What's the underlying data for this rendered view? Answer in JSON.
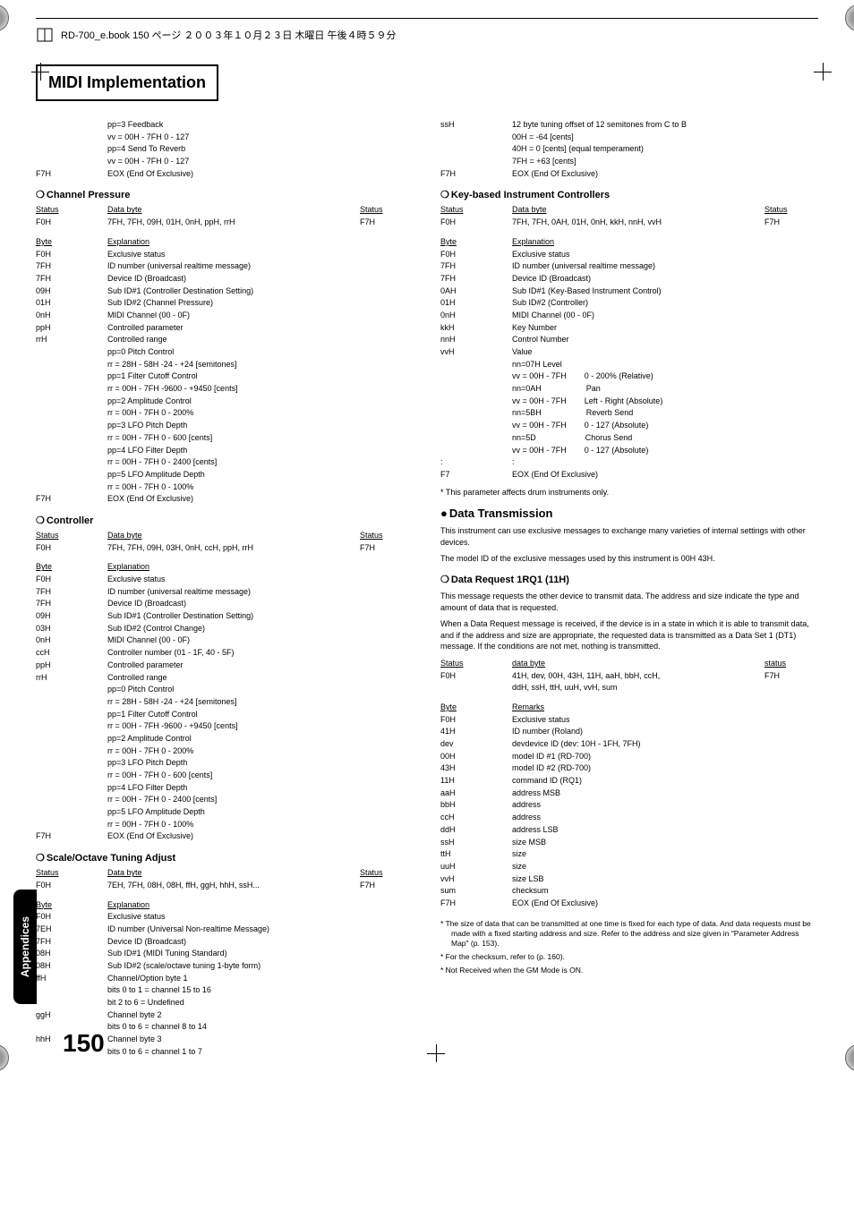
{
  "header": {
    "text": "RD-700_e.book 150 ページ ２００３年１０月２３日 木曜日 午後４時５９分"
  },
  "title": "MIDI Implementation",
  "sideTab": "Appendices",
  "pageNumber": "150",
  "leftCol": {
    "intro": [
      {
        "l": "",
        "m": "pp=3 Feedback"
      },
      {
        "l": "",
        "m": "vv = 00H - 7FH 0 - 127"
      },
      {
        "l": "",
        "m": "pp=4 Send To Reverb"
      },
      {
        "l": "",
        "m": "vv = 00H - 7FH 0 - 127"
      },
      {
        "l": "F7H",
        "m": "EOX (End Of Exclusive)"
      }
    ],
    "channelPressure": {
      "title": "Channel Pressure",
      "header": {
        "l": "Status",
        "m": "Data byte",
        "r": "Status"
      },
      "statusRow": {
        "l": "F0H",
        "m": "7FH, 7FH, 09H, 01H, 0nH, ppH, rrH",
        "r": "F7H"
      },
      "byteHeader": {
        "l": "Byte",
        "m": "Explanation"
      },
      "rows": [
        {
          "l": "F0H",
          "m": "Exclusive status"
        },
        {
          "l": "7FH",
          "m": "ID number (universal realtime message)"
        },
        {
          "l": "7FH",
          "m": "Device ID (Broadcast)"
        },
        {
          "l": "09H",
          "m": "Sub ID#1 (Controller Destination Setting)"
        },
        {
          "l": "01H",
          "m": "Sub ID#2 (Channel Pressure)"
        },
        {
          "l": "0nH",
          "m": "MIDI Channel (00 - 0F)"
        },
        {
          "l": "ppH",
          "m": "Controlled parameter"
        },
        {
          "l": "rrH",
          "m": "Controlled range"
        },
        {
          "l": "",
          "m": "pp=0 Pitch Control"
        },
        {
          "l": "",
          "m": "rr = 28H - 58H -24 - +24 [semitones]"
        },
        {
          "l": "",
          "m": "pp=1 Filter Cutoff Control"
        },
        {
          "l": "",
          "m": "rr = 00H - 7FH -9600 - +9450 [cents]"
        },
        {
          "l": "",
          "m": "pp=2 Amplitude Control"
        },
        {
          "l": "",
          "m": "rr = 00H - 7FH 0 - 200%"
        },
        {
          "l": "",
          "m": "pp=3 LFO Pitch Depth"
        },
        {
          "l": "",
          "m": "rr = 00H - 7FH 0 - 600 [cents]"
        },
        {
          "l": "",
          "m": "pp=4 LFO Filter Depth"
        },
        {
          "l": "",
          "m": "rr = 00H - 7FH 0 - 2400 [cents]"
        },
        {
          "l": "",
          "m": "pp=5 LFO Amplitude Depth"
        },
        {
          "l": "",
          "m": "rr = 00H - 7FH 0 - 100%"
        },
        {
          "l": "F7H",
          "m": "EOX (End Of Exclusive)"
        }
      ]
    },
    "controller": {
      "title": "Controller",
      "header": {
        "l": "Status",
        "m": "Data byte",
        "r": "Status"
      },
      "statusRow": {
        "l": "F0H",
        "m": "7FH, 7FH, 09H, 03H, 0nH, ccH, ppH, rrH",
        "r": "F7H"
      },
      "byteHeader": {
        "l": "Byte",
        "m": "Explanation"
      },
      "rows": [
        {
          "l": "F0H",
          "m": "Exclusive status"
        },
        {
          "l": "7FH",
          "m": "ID number (universal realtime message)"
        },
        {
          "l": "7FH",
          "m": "Device ID (Broadcast)"
        },
        {
          "l": "09H",
          "m": "Sub ID#1 (Controller Destination Setting)"
        },
        {
          "l": "03H",
          "m": "Sub ID#2 (Control Change)"
        },
        {
          "l": "0nH",
          "m": "MIDI Channel (00 - 0F)"
        },
        {
          "l": "ccH",
          "m": "Controller number (01 - 1F, 40 - 5F)"
        },
        {
          "l": "ppH",
          "m": "Controlled parameter"
        },
        {
          "l": "rrH",
          "m": "Controlled range"
        },
        {
          "l": "",
          "m": "pp=0 Pitch Control"
        },
        {
          "l": "",
          "m": "rr = 28H - 58H -24 - +24 [semitones]"
        },
        {
          "l": "",
          "m": "pp=1 Filter Cutoff Control"
        },
        {
          "l": "",
          "m": "rr = 00H - 7FH -9600 - +9450 [cents]"
        },
        {
          "l": "",
          "m": "pp=2 Amplitude Control"
        },
        {
          "l": "",
          "m": "rr = 00H - 7FH 0 - 200%"
        },
        {
          "l": "",
          "m": "pp=3 LFO Pitch Depth"
        },
        {
          "l": "",
          "m": "rr = 00H - 7FH 0 - 600 [cents]"
        },
        {
          "l": "",
          "m": "pp=4 LFO Filter Depth"
        },
        {
          "l": "",
          "m": "rr = 00H - 7FH 0 - 2400 [cents]"
        },
        {
          "l": "",
          "m": "pp=5 LFO Amplitude Depth"
        },
        {
          "l": "",
          "m": "rr = 00H - 7FH 0 - 100%"
        },
        {
          "l": "F7H",
          "m": "EOX (End Of Exclusive)"
        }
      ]
    },
    "scaleOctave": {
      "title": "Scale/Octave Tuning Adjust",
      "header": {
        "l": "Status",
        "m": "Data byte",
        "r": "Status"
      },
      "statusRow": {
        "l": "F0H",
        "m": "7EH, 7FH, 08H, 08H, ffH, ggH, hhH, ssH...",
        "r": "F7H"
      },
      "byteHeader": {
        "l": "Byte",
        "m": "Explanation"
      },
      "rows": [
        {
          "l": "F0H",
          "m": "Exclusive status"
        },
        {
          "l": "7EH",
          "m": "ID number (Universal Non-realtime Message)"
        },
        {
          "l": "7FH",
          "m": "Device ID (Broadcast)"
        },
        {
          "l": "08H",
          "m": "Sub ID#1 (MIDI Tuning Standard)"
        },
        {
          "l": "08H",
          "m": "Sub ID#2 (scale/octave tuning 1-byte form)"
        },
        {
          "l": "ffH",
          "m": "Channel/Option byte 1"
        },
        {
          "l": "",
          "m": "bits 0 to 1 = channel 15 to 16"
        },
        {
          "l": "",
          "m": "bit 2 to 6 = Undefined"
        },
        {
          "l": "ggH",
          "m": "Channel byte 2"
        },
        {
          "l": "",
          "m": "bits 0 to 6 = channel 8 to 14"
        },
        {
          "l": "hhH",
          "m": "Channel byte 3"
        },
        {
          "l": "",
          "m": "bits 0 to 6 = channel 1 to 7"
        }
      ]
    }
  },
  "rightCol": {
    "intro": [
      {
        "l": "ssH",
        "m": "12 byte tuning offset of 12 semitones from C to B"
      },
      {
        "l": "",
        "m": "00H = -64 [cents]"
      },
      {
        "l": "",
        "m": "40H = 0 [cents] (equal temperament)"
      },
      {
        "l": "",
        "m": "7FH = +63 [cents]"
      },
      {
        "l": "F7H",
        "m": "EOX (End Of Exclusive)"
      }
    ],
    "keyBased": {
      "title": "Key-based Instrument Controllers",
      "header": {
        "l": "Status",
        "m": "Data byte",
        "r": "Status"
      },
      "statusRow": {
        "l": "F0H",
        "m": "7FH, 7FH, 0AH, 01H, 0nH, kkH, nnH, vvH",
        "r": "F7H"
      },
      "byteHeader": {
        "l": "Byte",
        "m": "Explanation"
      },
      "rows": [
        {
          "l": "F0H",
          "m": "Exclusive status"
        },
        {
          "l": "7FH",
          "m": "ID number (universal realtime message)"
        },
        {
          "l": "7FH",
          "m": "Device ID (Broadcast)"
        },
        {
          "l": "0AH",
          "m": "Sub ID#1 (Key-Based Instrument Control)"
        },
        {
          "l": "01H",
          "m": "Sub ID#2 (Controller)"
        },
        {
          "l": "0nH",
          "m": "MIDI Channel (00 - 0F)"
        },
        {
          "l": "kkH",
          "m": "Key Number"
        },
        {
          "l": "nnH",
          "m": "Control Number"
        },
        {
          "l": "vvH",
          "m": "Value"
        },
        {
          "l": "",
          "m": "nn=07H Level"
        },
        {
          "l": "",
          "m": "vv = 00H - 7FH        0 - 200% (Relative)"
        },
        {
          "l": "",
          "m": "nn=0AH                    Pan"
        },
        {
          "l": "",
          "m": "vv = 00H - 7FH        Left - Right (Absolute)"
        },
        {
          "l": "",
          "m": "nn=5BH                    Reverb Send"
        },
        {
          "l": "",
          "m": "vv = 00H - 7FH        0 - 127 (Absolute)"
        },
        {
          "l": "",
          "m": "nn=5D                      Chorus Send"
        },
        {
          "l": "",
          "m": "vv = 00H - 7FH        0 - 127 (Absolute)"
        },
        {
          "l": ":",
          "m": ":"
        },
        {
          "l": "F7",
          "m": "EOX (End Of Exclusive)"
        }
      ],
      "footnote": "* This parameter affects drum instruments only."
    },
    "dataTransmission": {
      "title": "Data Transmission",
      "body1": "This instrument can use exclusive messages to exchange many varieties of internal settings with other devices.",
      "body2": "The model ID of the exclusive messages used by this instrument is 00H 43H."
    },
    "dataRequest": {
      "title": "Data Request 1RQ1 (11H)",
      "body1": "This message requests the other device to transmit data. The address and size indicate the type and amount of data that is requested.",
      "body2": "When a Data Request message is received, if the device is in a state in which it is able to transmit data, and if the address and size are appropriate, the requested data is transmitted as a Data Set 1 (DT1) message. If the conditions are not met, nothing is transmitted.",
      "header": {
        "l": "Status",
        "m": "data byte",
        "r": "status"
      },
      "statusRow": {
        "l": "F0H",
        "m": "41H, dev, 00H, 43H, 11H, aaH, bbH, ccH,",
        "r": "F7H"
      },
      "statusRow2": {
        "l": "",
        "m": "ddH, ssH, ttH, uuH, vvH, sum"
      },
      "byteHeader": {
        "l": "Byte",
        "m": "Remarks"
      },
      "rows": [
        {
          "l": "F0H",
          "m": "Exclusive status"
        },
        {
          "l": "41H",
          "m": "ID number (Roland)"
        },
        {
          "l": "dev",
          "m": "devdevice ID (dev: 10H - 1FH, 7FH)"
        },
        {
          "l": "00H",
          "m": "model ID #1 (RD-700)"
        },
        {
          "l": "43H",
          "m": "model ID #2 (RD-700)"
        },
        {
          "l": "11H",
          "m": "command ID (RQ1)"
        },
        {
          "l": "aaH",
          "m": "address MSB"
        },
        {
          "l": "bbH",
          "m": "address"
        },
        {
          "l": "ccH",
          "m": "address"
        },
        {
          "l": "ddH",
          "m": "address LSB"
        },
        {
          "l": "ssH",
          "m": "size MSB"
        },
        {
          "l": "ttH",
          "m": "size"
        },
        {
          "l": "uuH",
          "m": "size"
        },
        {
          "l": "vvH",
          "m": "size LSB"
        },
        {
          "l": "sum",
          "m": "checksum"
        },
        {
          "l": "F7H",
          "m": "EOX (End Of Exclusive)"
        }
      ],
      "footnotes": [
        "* The size of data that can be transmitted at one time is fixed for each type of data. And data requests must be made with a fixed starting address and size. Refer to the address and size given in \"Parameter Address Map\" (p. 153).",
        "* For the checksum, refer to (p. 160).",
        "* Not Received when the GM Mode is ON."
      ]
    }
  }
}
